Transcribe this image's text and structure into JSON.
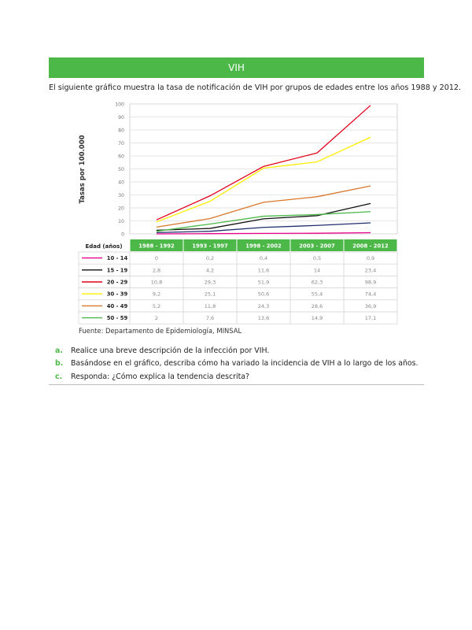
{
  "banner": {
    "title": "VIH"
  },
  "intro": "El siguiente gráfico muestra la tasa de notificación de VIH por grupos de edades entre los años 1988 y 2012.",
  "source": "Fuente: Departamento de Epidemiología, MINSAL",
  "questions": [
    {
      "letter": "a.",
      "text": "Realice una breve descripción de la infección por VIH."
    },
    {
      "letter": "b.",
      "text": "Basándose en el gráfico, describa cómo ha variado la incidencia de VIH a lo largo de los años."
    },
    {
      "letter": "c.",
      "text": "Responda: ¿Cómo explica la tendencia descrita?"
    }
  ],
  "colors": {
    "green": "#4cb848"
  },
  "chart_data": {
    "type": "line",
    "title": "",
    "ylabel": "Tasas por 100.000",
    "table_header": "Edad (años)",
    "ylim": [
      0,
      100
    ],
    "yticks": [
      "0",
      "10",
      "20",
      "30",
      "40",
      "50",
      "60",
      "70",
      "80",
      "90",
      "100"
    ],
    "categories": [
      "1988 - 1992",
      "1993 - 1997",
      "1998 - 2002",
      "2003 - 2007",
      "2008 - 2012"
    ],
    "grid": true,
    "legend": "table-below",
    "series": [
      {
        "name": "10 - 14",
        "color": "#e8008a",
        "values": [
          0,
          0.2,
          0.4,
          0.5,
          0.9
        ],
        "labels": [
          "0",
          "0,2",
          "0,4",
          "0,5",
          "0,9"
        ]
      },
      {
        "name": "15 - 19",
        "color": "#111111",
        "values": [
          2.8,
          4.2,
          11.6,
          14,
          23.4
        ],
        "labels": [
          "2,8",
          "4,2",
          "11,6",
          "14",
          "23,4"
        ]
      },
      {
        "name": "20 - 29",
        "color": "#e3001b",
        "values": [
          10.8,
          29.3,
          51.9,
          62.3,
          98.9
        ],
        "labels": [
          "10,8",
          "29,3",
          "51,9",
          "62,3",
          "98,9"
        ]
      },
      {
        "name": "30 - 39",
        "color": "#ffee00",
        "values": [
          9.2,
          25.1,
          50.6,
          55.4,
          74.4
        ],
        "labels": [
          "9,2",
          "25,1",
          "50,6",
          "55,4",
          "74,4"
        ]
      },
      {
        "name": "40 - 49",
        "color": "#d9782d",
        "values": [
          5.2,
          11.8,
          24.3,
          28.6,
          36.9
        ],
        "labels": [
          "5,2",
          "11,8",
          "24,3",
          "28,6",
          "36,9"
        ]
      },
      {
        "name": "50 - 59",
        "color": "#4cb848",
        "values": [
          2,
          7.6,
          13.6,
          14.9,
          17.1
        ],
        "labels": [
          "2",
          "7,6",
          "13,6",
          "14,9",
          "17,1"
        ]
      },
      {
        "name": "",
        "color": "#1f2f6e",
        "values": [
          1,
          2,
          5,
          6.5,
          8.5
        ],
        "labels": []
      }
    ]
  }
}
